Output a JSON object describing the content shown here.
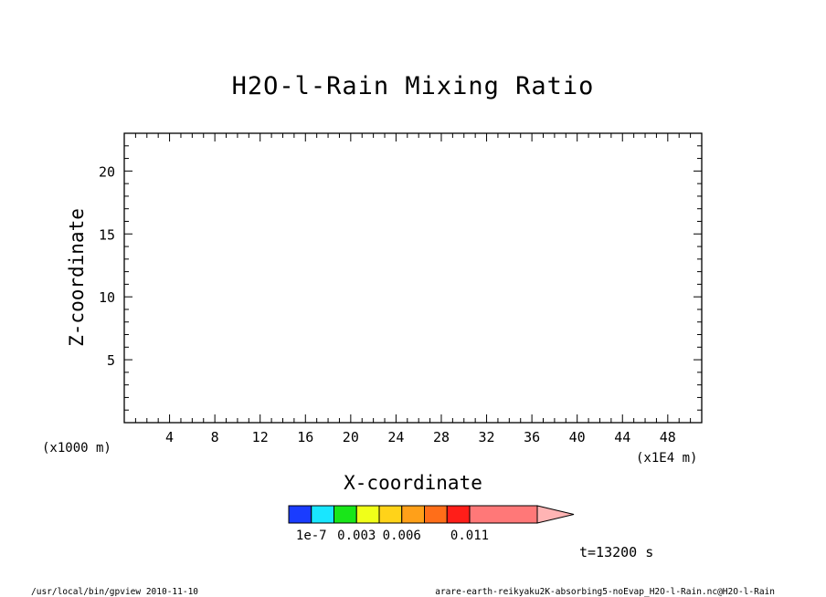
{
  "chart_data": {
    "type": "heatmap",
    "title": "H2O-l-Rain Mixing Ratio",
    "xlabel": "X-coordinate",
    "ylabel": "Z-coordinate",
    "x_unit": "(x1E4 m)",
    "y_unit": "(x1000 m)",
    "xlim": [
      0,
      51
    ],
    "ylim": [
      0,
      23
    ],
    "x_ticks_major": [
      4,
      8,
      12,
      16,
      20,
      24,
      28,
      32,
      36,
      40,
      44,
      48
    ],
    "x_ticks_minor_step": 1,
    "y_ticks_major": [
      5,
      10,
      15,
      20
    ],
    "y_ticks_minor_step": 1,
    "grid": false,
    "values": [],
    "colorbar": {
      "levels": [
        1e-07,
        0.0015,
        0.003,
        0.0045,
        0.006,
        0.0075,
        0.009,
        0.011
      ],
      "colors": [
        "#1a3cff",
        "#19e6ff",
        "#19e619",
        "#f0ff19",
        "#ffd319",
        "#ffa019",
        "#ff6e19",
        "#ff1e19",
        "#ff7878"
      ],
      "extend_color": "#ffb4b4",
      "labels": [
        "1e-7",
        "0.003",
        "0.006",
        "0.011"
      ],
      "label_levels": [
        1e-07,
        0.003,
        0.006,
        0.011
      ]
    },
    "time_label": "t=13200 s"
  },
  "footer": {
    "left": "/usr/local/bin/gpview  2010-11-10",
    "right": "arare-earth-reikyaku2K-absorbing5-noEvap_H2O-l-Rain.nc@H2O-l-Rain"
  }
}
